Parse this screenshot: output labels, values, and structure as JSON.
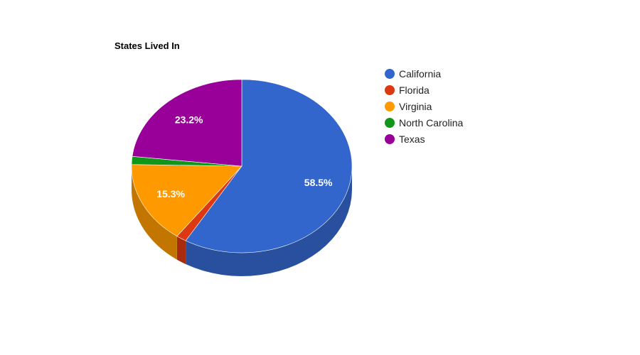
{
  "chart_data": {
    "type": "pie",
    "title": "States Lived In",
    "three_d": true,
    "legend_position": "right",
    "slices": [
      {
        "label": "California",
        "value": 58.5,
        "display": "58.5%",
        "color": "#3366cc",
        "side_color": "#28509e"
      },
      {
        "label": "Florida",
        "value": 1.5,
        "display": "",
        "color": "#dc3912",
        "side_color": "#a82b0d"
      },
      {
        "label": "Virginia",
        "value": 15.3,
        "display": "15.3%",
        "color": "#ff9900",
        "side_color": "#c27600"
      },
      {
        "label": "North Carolina",
        "value": 1.5,
        "display": "",
        "color": "#109618",
        "side_color": "#0c7312"
      },
      {
        "label": "Texas",
        "value": 23.2,
        "display": "23.2%",
        "color": "#990099",
        "side_color": "#730073"
      }
    ]
  }
}
